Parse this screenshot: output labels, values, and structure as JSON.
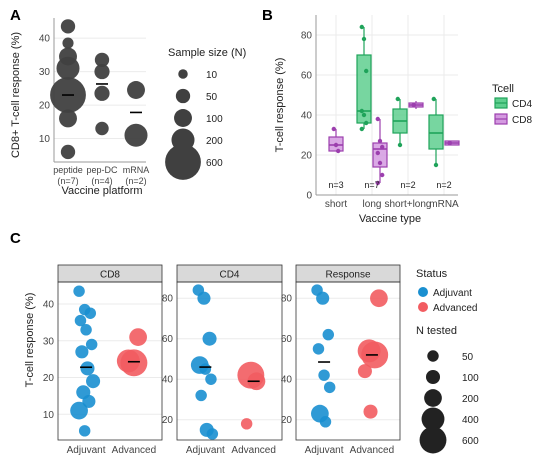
{
  "panels": {
    "A": {
      "label": "A"
    },
    "B": {
      "label": "B"
    },
    "C": {
      "label": "C"
    }
  },
  "chart_data": [
    {
      "id": "A",
      "type": "scatter",
      "ylabel": "CD8+ T-cell response (%)",
      "xlabel": "Vaccine platform",
      "ylim": [
        3,
        46
      ],
      "yticks": [
        10,
        20,
        30,
        40
      ],
      "categories": [
        "peptide",
        "pep-DC",
        "mRNA"
      ],
      "category_sublabels": [
        "(n=7)",
        "(n=4)",
        "(n=2)"
      ],
      "points": [
        {
          "cat": "peptide",
          "y": 43.5,
          "n": 50
        },
        {
          "cat": "peptide",
          "y": 38.5,
          "n": 20
        },
        {
          "cat": "peptide",
          "y": 34.5,
          "n": 100
        },
        {
          "cat": "peptide",
          "y": 31.0,
          "n": 200
        },
        {
          "cat": "peptide",
          "y": 23.0,
          "n": 600
        },
        {
          "cat": "peptide",
          "y": 16.0,
          "n": 100
        },
        {
          "cat": "peptide",
          "y": 6.0,
          "n": 50
        },
        {
          "cat": "pep-DC",
          "y": 33.5,
          "n": 50
        },
        {
          "cat": "pep-DC",
          "y": 30.0,
          "n": 60
        },
        {
          "cat": "pep-DC",
          "y": 23.5,
          "n": 60
        },
        {
          "cat": "pep-DC",
          "y": 13.0,
          "n": 40
        },
        {
          "cat": "mRNA",
          "y": 24.5,
          "n": 100
        },
        {
          "cat": "mRNA",
          "y": 11.0,
          "n": 200
        }
      ],
      "means": {
        "peptide": 23.0,
        "pep-DC": 26.3,
        "mRNA": 17.8
      },
      "legend": {
        "title": "Sample size (N)",
        "entries": [
          {
            "label": "10",
            "n": 10
          },
          {
            "label": "50",
            "n": 50
          },
          {
            "label": "100",
            "n": 100
          },
          {
            "label": "200",
            "n": 200
          },
          {
            "label": "600",
            "n": 600
          }
        ]
      }
    },
    {
      "id": "B",
      "type": "box",
      "ylabel": "T-cell response (%)",
      "xlabel": "Vaccine type",
      "ylim": [
        0,
        90
      ],
      "yticks": [
        0,
        20,
        40,
        60,
        80
      ],
      "categories": [
        "short",
        "long",
        "short+long",
        "mRNA"
      ],
      "counts": [
        "n=3",
        "n=7",
        "n=2",
        "n=2"
      ],
      "legend": {
        "title": "Tcell",
        "entries": [
          "CD4",
          "CD8"
        ]
      },
      "colors": {
        "CD4": "#1fa35a",
        "CD8": "#9c3fae",
        "CD4_fill": "#5fcf8f",
        "CD8_fill": "#d49ae0"
      },
      "series": [
        {
          "name": "CD4",
          "boxes": [
            {
              "cat": "long",
              "min": 33,
              "q1": 36,
              "median": 42,
              "q3": 70,
              "max": 84,
              "points": [
                84,
                78,
                62,
                42,
                40,
                36,
                33
              ]
            },
            {
              "cat": "short+long",
              "min": 25,
              "q1": 31,
              "median": 37,
              "q3": 43,
              "max": 48,
              "points": [
                48,
                25
              ]
            },
            {
              "cat": "mRNA",
              "min": 15,
              "q1": 23,
              "median": 31,
              "q3": 40,
              "max": 48,
              "points": [
                48,
                15
              ]
            }
          ]
        },
        {
          "name": "CD8",
          "boxes": [
            {
              "cat": "short",
              "min": 22,
              "q1": 22,
              "median": 25,
              "q3": 29,
              "max": 33,
              "points": [
                33,
                25,
                22
              ]
            },
            {
              "cat": "long",
              "min": 6,
              "q1": 14,
              "median": 23,
              "q3": 26,
              "max": 38,
              "points": [
                38,
                27,
                24,
                21,
                16,
                10,
                6
              ]
            },
            {
              "cat": "short+long",
              "min": 43,
              "q1": 44,
              "median": 45,
              "q3": 46,
              "max": 47,
              "points": [
                45
              ]
            },
            {
              "cat": "mRNA",
              "min": 25,
              "q1": 25,
              "median": 26,
              "q3": 27,
              "max": 27,
              "points": [
                26
              ]
            }
          ]
        }
      ]
    },
    {
      "id": "C",
      "type": "scatter",
      "ylabel": "T-cell response (%)",
      "categories": [
        "Adjuvant",
        "Advanced"
      ],
      "legend": {
        "status_title": "Status",
        "status_entries": [
          "Adjuvant",
          "Advanced"
        ],
        "size_title": "N tested",
        "size_entries": [
          {
            "label": "50",
            "n": 50
          },
          {
            "label": "100",
            "n": 100
          },
          {
            "label": "200",
            "n": 200
          },
          {
            "label": "400",
            "n": 400
          },
          {
            "label": "600",
            "n": 600
          }
        ]
      },
      "colors": {
        "Adjuvant": "#1a8fd0",
        "Advanced": "#f25c61"
      },
      "facets": [
        {
          "title": "CD8",
          "ylim": [
            3,
            46
          ],
          "yticks": [
            10,
            20,
            30,
            40
          ],
          "points": [
            {
              "cat": "Adjuvant",
              "y": 43.5,
              "n": 50
            },
            {
              "cat": "Adjuvant",
              "y": 38.5,
              "n": 50
            },
            {
              "cat": "Adjuvant",
              "y": 37.5,
              "n": 50
            },
            {
              "cat": "Adjuvant",
              "y": 35.5,
              "n": 50
            },
            {
              "cat": "Adjuvant",
              "y": 33.0,
              "n": 50
            },
            {
              "cat": "Adjuvant",
              "y": 29.0,
              "n": 50
            },
            {
              "cat": "Adjuvant",
              "y": 27.0,
              "n": 80
            },
            {
              "cat": "Adjuvant",
              "y": 22.5,
              "n": 100
            },
            {
              "cat": "Adjuvant",
              "y": 19.0,
              "n": 100
            },
            {
              "cat": "Adjuvant",
              "y": 16.0,
              "n": 100
            },
            {
              "cat": "Adjuvant",
              "y": 13.5,
              "n": 80
            },
            {
              "cat": "Adjuvant",
              "y": 11.0,
              "n": 200
            },
            {
              "cat": "Adjuvant",
              "y": 5.5,
              "n": 50
            },
            {
              "cat": "Advanced",
              "y": 31.0,
              "n": 200
            },
            {
              "cat": "Advanced",
              "y": 24.5,
              "n": 400
            },
            {
              "cat": "Advanced",
              "y": 24.0,
              "n": 600
            }
          ],
          "means": {
            "Adjuvant": 22.8,
            "Advanced": 24.3
          }
        },
        {
          "title": "CD4",
          "ylim": [
            10,
            88
          ],
          "yticks": [
            20,
            40,
            60,
            80
          ],
          "points": [
            {
              "cat": "Adjuvant",
              "y": 84.0,
              "n": 50
            },
            {
              "cat": "Adjuvant",
              "y": 80.0,
              "n": 80
            },
            {
              "cat": "Adjuvant",
              "y": 60.0,
              "n": 100
            },
            {
              "cat": "Adjuvant",
              "y": 47.0,
              "n": 200
            },
            {
              "cat": "Adjuvant",
              "y": 45.0,
              "n": 50
            },
            {
              "cat": "Adjuvant",
              "y": 40.0,
              "n": 50
            },
            {
              "cat": "Adjuvant",
              "y": 32.0,
              "n": 50
            },
            {
              "cat": "Adjuvant",
              "y": 15.0,
              "n": 100
            },
            {
              "cat": "Adjuvant",
              "y": 13.0,
              "n": 50
            },
            {
              "cat": "Advanced",
              "y": 42.0,
              "n": 600
            },
            {
              "cat": "Advanced",
              "y": 39.0,
              "n": 200
            },
            {
              "cat": "Advanced",
              "y": 18.0,
              "n": 50
            }
          ],
          "means": {
            "Adjuvant": 46.0,
            "Advanced": 39.0
          }
        },
        {
          "title": "Response",
          "ylim": [
            10,
            88
          ],
          "yticks": [
            20,
            40,
            60,
            80
          ],
          "points": [
            {
              "cat": "Adjuvant",
              "y": 84.0,
              "n": 50
            },
            {
              "cat": "Adjuvant",
              "y": 80.0,
              "n": 80
            },
            {
              "cat": "Adjuvant",
              "y": 62.0,
              "n": 50
            },
            {
              "cat": "Adjuvant",
              "y": 55.0,
              "n": 50
            },
            {
              "cat": "Adjuvant",
              "y": 42.0,
              "n": 50
            },
            {
              "cat": "Adjuvant",
              "y": 36.0,
              "n": 50
            },
            {
              "cat": "Adjuvant",
              "y": 23.0,
              "n": 200
            },
            {
              "cat": "Adjuvant",
              "y": 19.0,
              "n": 50
            },
            {
              "cat": "Advanced",
              "y": 80.0,
              "n": 200
            },
            {
              "cat": "Advanced",
              "y": 54.0,
              "n": 400
            },
            {
              "cat": "Advanced",
              "y": 52.0,
              "n": 600
            },
            {
              "cat": "Advanced",
              "y": 44.0,
              "n": 100
            },
            {
              "cat": "Advanced",
              "y": 24.0,
              "n": 100
            }
          ],
          "means": {
            "Adjuvant": 48.5,
            "Advanced": 52.0
          }
        }
      ]
    }
  ]
}
